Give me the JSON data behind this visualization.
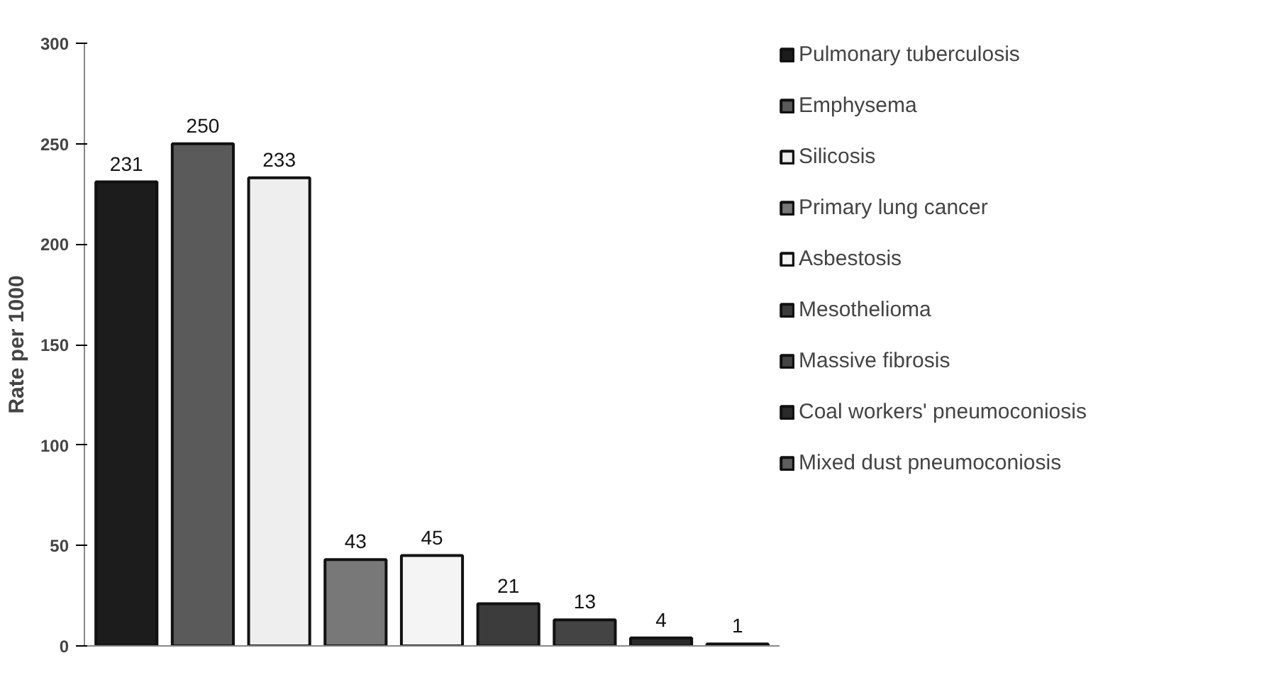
{
  "chart_data": {
    "type": "bar",
    "ylabel": "Rate per 1000",
    "categories": [
      null,
      null,
      null,
      null,
      null,
      null,
      null,
      null,
      null
    ],
    "ylim": [
      0,
      300
    ],
    "yticks": [
      0,
      50,
      100,
      150,
      200,
      250,
      300
    ],
    "grid": false,
    "legend": "right",
    "data_labels": true,
    "series": [
      {
        "name": "Pulmonary tuberculosis",
        "color": "#1c1c1c",
        "values": [
          231,
          null,
          null,
          null,
          null,
          null,
          null,
          null,
          null
        ]
      },
      {
        "name": "Emphysema",
        "color": "#5a5a5a",
        "values": [
          null,
          250,
          null,
          null,
          null,
          null,
          null,
          null,
          null
        ]
      },
      {
        "name": "Silicosis",
        "color": "#eeeeee",
        "values": [
          null,
          null,
          233,
          null,
          null,
          null,
          null,
          null,
          null
        ]
      },
      {
        "name": "Primary lung cancer",
        "color": "#787878",
        "values": [
          null,
          null,
          null,
          43,
          null,
          null,
          null,
          null,
          null
        ]
      },
      {
        "name": "Asbestosis",
        "color": "#f4f4f4",
        "values": [
          null,
          null,
          null,
          null,
          45,
          null,
          null,
          null,
          null
        ]
      },
      {
        "name": "Mesothelioma",
        "color": "#3c3c3c",
        "values": [
          null,
          null,
          null,
          null,
          null,
          21,
          null,
          null,
          null
        ]
      },
      {
        "name": "Massive fibrosis",
        "color": "#444444",
        "values": [
          null,
          null,
          null,
          null,
          null,
          null,
          13,
          null,
          null
        ]
      },
      {
        "name": "Coal workers' pneumoconiosis",
        "color": "#2a2a2a",
        "values": [
          null,
          null,
          null,
          null,
          null,
          null,
          null,
          4,
          null
        ]
      },
      {
        "name": "Mixed dust pneumoconiosis",
        "color": "#5e5e5e",
        "values": [
          null,
          null,
          null,
          null,
          null,
          null,
          null,
          null,
          1
        ]
      }
    ]
  }
}
